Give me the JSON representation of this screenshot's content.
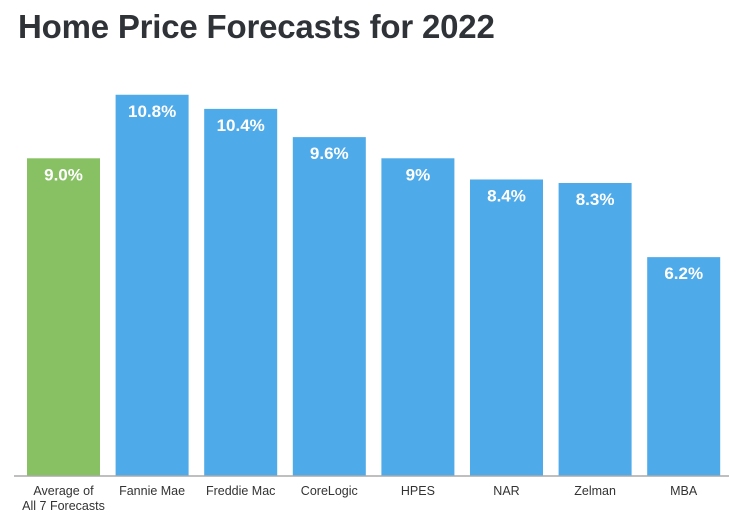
{
  "chart_data": {
    "type": "bar",
    "title": "Home Price Forecasts for 2022",
    "xlabel": "",
    "ylabel": "",
    "ylim": [
      0,
      13.5
    ],
    "grid": false,
    "legend": "none",
    "categories": [
      [
        "Average of",
        "All 7 Forecasts"
      ],
      [
        "Fannie Mae"
      ],
      [
        "Freddie Mac"
      ],
      [
        "CoreLogic"
      ],
      [
        "HPES"
      ],
      [
        "NAR"
      ],
      [
        "Zelman"
      ],
      [
        "MBA"
      ]
    ],
    "values": [
      9.0,
      10.8,
      10.4,
      9.6,
      9.0,
      8.4,
      8.3,
      6.2
    ],
    "data_labels": [
      "9.0%",
      "10.8%",
      "10.4%",
      "9.6%",
      "9%",
      "8.4%",
      "8.3%",
      "6.2%"
    ],
    "colors": [
      "#88c064",
      "#4eaae8",
      "#4eaae8",
      "#4eaae8",
      "#4eaae8",
      "#4eaae8",
      "#4eaae8",
      "#4eaae8"
    ]
  }
}
